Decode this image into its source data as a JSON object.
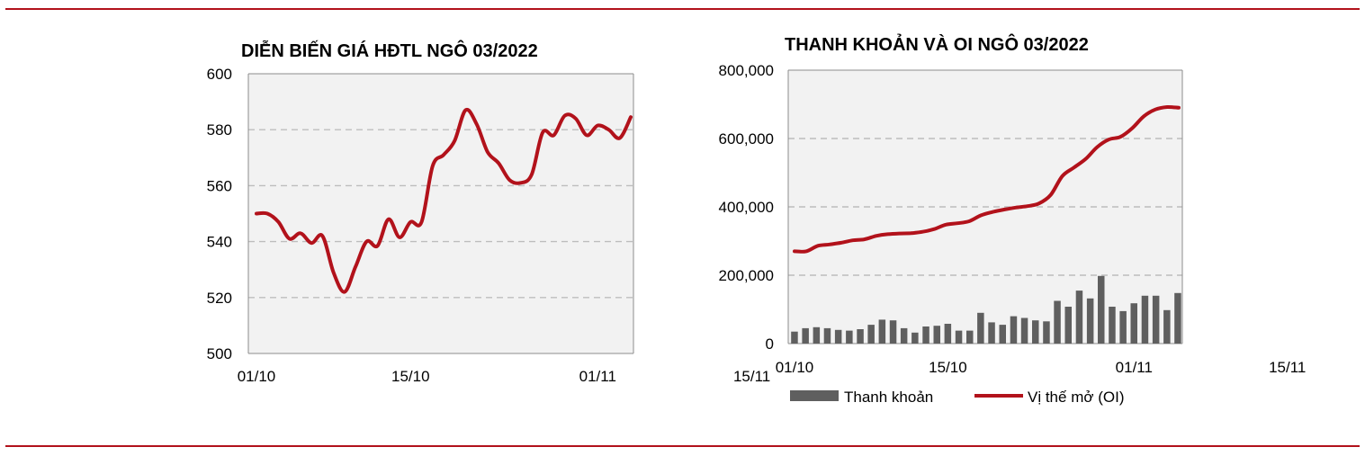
{
  "chart_data": [
    {
      "type": "line",
      "title": "DIỄN BIẾN GIÁ HĐTL NGÔ 03/2022",
      "ylim": [
        500,
        600
      ],
      "yticks": [
        500,
        520,
        540,
        560,
        580,
        600
      ],
      "xtick_labels": [
        "01/10",
        "15/10",
        "01/11",
        "15/11"
      ],
      "xtick_days": [
        0,
        14,
        31,
        45
      ],
      "grid": true,
      "series": [
        {
          "color": "#b2121b",
          "points": [
            [
              0,
              550
            ],
            [
              1,
              550
            ],
            [
              2,
              547
            ],
            [
              3,
              541
            ],
            [
              4,
              543
            ],
            [
              5,
              539.5
            ],
            [
              6,
              542
            ],
            [
              7,
              529
            ],
            [
              8,
              522
            ],
            [
              9,
              531
            ],
            [
              10,
              540
            ],
            [
              11,
              538.5
            ],
            [
              12,
              548
            ],
            [
              13,
              541.5
            ],
            [
              14,
              547
            ],
            [
              15,
              547
            ],
            [
              16,
              567
            ],
            [
              17,
              571
            ],
            [
              18,
              576
            ],
            [
              19,
              587
            ],
            [
              20,
              582
            ],
            [
              21,
              572
            ],
            [
              22,
              568
            ],
            [
              23,
              562
            ],
            [
              24,
              561
            ],
            [
              25,
              564
            ],
            [
              26,
              579
            ],
            [
              27,
              578
            ],
            [
              28,
              585
            ],
            [
              29,
              584
            ],
            [
              30,
              578
            ],
            [
              31,
              581.5
            ],
            [
              32,
              580
            ],
            [
              33,
              577
            ],
            [
              34,
              584.5
            ]
          ]
        }
      ]
    },
    {
      "type": "bar+line",
      "title": "THANH KHOẢN VÀ OI NGÔ 03/2022",
      "ylim": [
        0,
        800000
      ],
      "yticks": [
        0,
        200000,
        400000,
        600000,
        800000
      ],
      "ytick_labels": [
        "0",
        "200,000",
        "400,000",
        "600,000",
        "800,000"
      ],
      "xtick_labels": [
        "01/10",
        "15/10",
        "01/11",
        "15/11"
      ],
      "xtick_days": [
        0,
        14,
        31,
        45
      ],
      "grid": true,
      "legend_position": "bottom",
      "legend": [
        {
          "label": "Thanh khoản",
          "kind": "bar",
          "color": "#5f5f5f"
        },
        {
          "label": "Vị thế mở (OI)",
          "kind": "line",
          "color": "#b2121b"
        }
      ],
      "bars": {
        "name": "Thanh khoản",
        "color": "#5f5f5f",
        "values": [
          35000,
          45000,
          48000,
          45000,
          40000,
          38000,
          42000,
          55000,
          70000,
          68000,
          45000,
          32000,
          50000,
          52000,
          58000,
          38000,
          38000,
          90000,
          62000,
          55000,
          80000,
          75000,
          68000,
          65000,
          125000,
          108000,
          155000,
          132000,
          198000,
          108000,
          95000,
          118000,
          140000,
          140000,
          98000,
          148000
        ]
      },
      "line": {
        "name": "Vị thế mở (OI)",
        "color": "#b2121b",
        "points": [
          [
            0,
            270000
          ],
          [
            1,
            270000
          ],
          [
            2,
            286000
          ],
          [
            3,
            290000
          ],
          [
            4,
            295000
          ],
          [
            5,
            302000
          ],
          [
            6,
            305000
          ],
          [
            7,
            315000
          ],
          [
            8,
            320000
          ],
          [
            9,
            322000
          ],
          [
            10,
            323000
          ],
          [
            11,
            327000
          ],
          [
            12,
            335000
          ],
          [
            13,
            348000
          ],
          [
            14,
            352000
          ],
          [
            15,
            358000
          ],
          [
            16,
            375000
          ],
          [
            17,
            385000
          ],
          [
            18,
            392000
          ],
          [
            19,
            398000
          ],
          [
            20,
            402000
          ],
          [
            21,
            410000
          ],
          [
            22,
            435000
          ],
          [
            23,
            490000
          ],
          [
            24,
            515000
          ],
          [
            25,
            540000
          ],
          [
            26,
            575000
          ],
          [
            27,
            597000
          ],
          [
            28,
            605000
          ],
          [
            29,
            630000
          ],
          [
            30,
            665000
          ],
          [
            31,
            685000
          ],
          [
            32,
            692000
          ],
          [
            33,
            690000
          ]
        ]
      }
    }
  ]
}
